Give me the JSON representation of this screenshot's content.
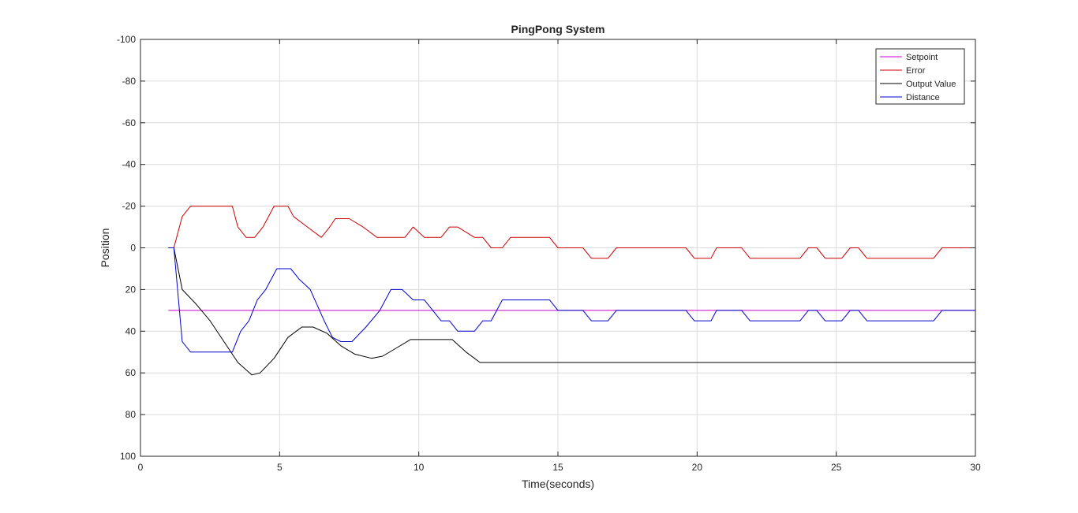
{
  "chart_data": {
    "type": "line",
    "title": "PingPong System",
    "xlabel": "Time(seconds)",
    "ylabel": "Position",
    "xlim": [
      0,
      30
    ],
    "ylim": [
      -100,
      100
    ],
    "y_reversed": true,
    "grid": true,
    "legend_position": "top-right",
    "xticks": [
      "0",
      "5",
      "10",
      "15",
      "20",
      "25",
      "30"
    ],
    "yticks": [
      "-100",
      "-80",
      "-60",
      "-40",
      "-20",
      "0",
      "20",
      "40",
      "60",
      "80",
      "100"
    ],
    "series": [
      {
        "name": "Setpoint",
        "color": "#cc00cc",
        "x": [
          1,
          30
        ],
        "y": [
          30,
          30
        ]
      },
      {
        "name": "Error",
        "color": "#cc0000",
        "x": [
          1,
          1.2,
          1.5,
          1.8,
          3.3,
          3.5,
          3.8,
          4.1,
          4.4,
          4.8,
          5.3,
          5.5,
          6.0,
          6.5,
          6.8,
          7.0,
          7.5,
          8.0,
          8.5,
          9.0,
          9.5,
          9.8,
          10.2,
          10.8,
          11.1,
          11.4,
          12.0,
          12.3,
          12.6,
          13.0,
          13.3,
          14.7,
          15.0,
          15.9,
          16.2,
          16.8,
          17.1,
          19.6,
          19.9,
          20.5,
          20.7,
          21.6,
          21.9,
          23.7,
          24.0,
          24.3,
          24.6,
          25.2,
          25.5,
          25.8,
          26.1,
          28.5,
          28.8,
          30
        ],
        "y": [
          0,
          0,
          -15,
          -20,
          -20,
          -10,
          -5,
          -5,
          -10,
          -20,
          -20,
          -15,
          -10,
          -5,
          -10,
          -14,
          -14,
          -10,
          -5,
          -5,
          -5,
          -10,
          -5,
          -5,
          -10,
          -10,
          -5,
          -5,
          0,
          0,
          -5,
          -5,
          0,
          0,
          5,
          5,
          0,
          0,
          5,
          5,
          0,
          0,
          5,
          5,
          0,
          0,
          5,
          5,
          0,
          0,
          5,
          5,
          0,
          0
        ]
      },
      {
        "name": "Output Value",
        "color": "#000000",
        "x": [
          1,
          1.2,
          1.5,
          2.0,
          2.5,
          3.0,
          3.5,
          4.0,
          4.3,
          4.8,
          5.3,
          5.8,
          6.2,
          6.7,
          7.2,
          7.7,
          8.3,
          8.7,
          9.2,
          9.7,
          10.2,
          10.7,
          11.2,
          11.7,
          12.2,
          30
        ],
        "y": [
          0,
          0,
          20,
          27,
          35,
          45,
          55,
          61,
          60,
          53,
          43,
          38,
          38,
          41,
          47,
          51,
          53,
          52,
          48,
          44,
          44,
          44,
          44,
          50,
          55,
          55
        ]
      },
      {
        "name": "Distance",
        "color": "#0000cc",
        "x": [
          1,
          1.2,
          1.5,
          1.8,
          3.3,
          3.6,
          3.9,
          4.2,
          4.5,
          4.9,
          5.4,
          5.7,
          6.1,
          6.6,
          6.9,
          7.2,
          7.6,
          8.1,
          8.6,
          9.0,
          9.4,
          9.8,
          10.2,
          10.8,
          11.1,
          11.4,
          12.0,
          12.3,
          12.6,
          13.0,
          13.3,
          14.7,
          15.0,
          15.9,
          16.2,
          16.8,
          17.1,
          19.6,
          19.9,
          20.5,
          20.7,
          21.6,
          21.9,
          23.7,
          24.0,
          24.3,
          24.6,
          25.2,
          25.5,
          25.8,
          26.1,
          28.5,
          28.8,
          30
        ],
        "y": [
          0,
          0,
          45,
          50,
          50,
          40,
          35,
          25,
          20,
          10,
          10,
          15,
          20,
          35,
          43,
          45,
          45,
          38,
          30,
          20,
          20,
          25,
          25,
          35,
          35,
          40,
          40,
          35,
          35,
          25,
          25,
          25,
          30,
          30,
          35,
          35,
          30,
          30,
          35,
          35,
          30,
          30,
          35,
          35,
          30,
          30,
          35,
          35,
          30,
          30,
          35,
          35,
          30,
          30
        ]
      }
    ]
  }
}
